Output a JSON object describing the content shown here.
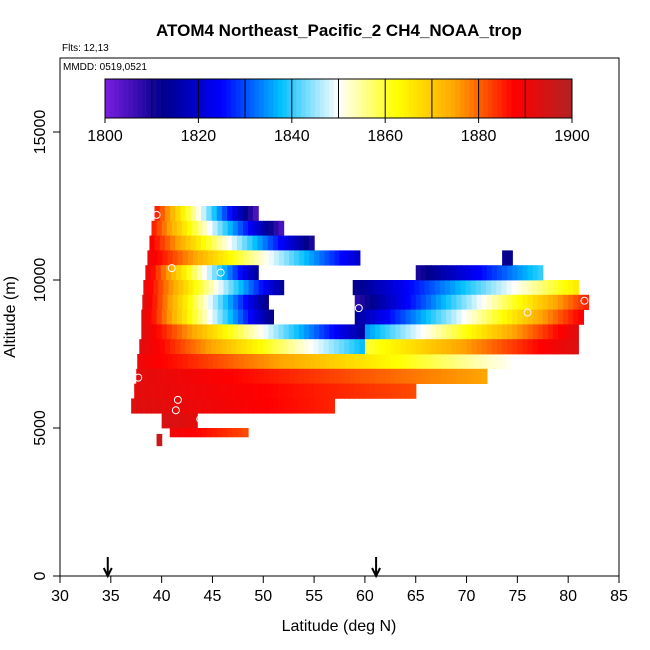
{
  "chart_data": {
    "type": "heatmap",
    "title": "ATOM4 Northeast_Pacific_2 CH4_NOAA_trop",
    "notes": [
      "Flts: 12,13",
      "MMDD: 0519,0521"
    ],
    "xlabel": "Latitude (deg N)",
    "ylabel": "Altitude (m)",
    "xlim": [
      30,
      85
    ],
    "ylim": [
      0,
      17500
    ],
    "xticks": [
      30,
      35,
      40,
      45,
      50,
      55,
      60,
      65,
      70,
      75,
      80,
      85
    ],
    "yticks": [
      0,
      5000,
      10000,
      15000
    ],
    "grid": false,
    "colorbar": {
      "placement": "top-inside",
      "min": 1800,
      "max": 1900,
      "ticks": [
        1800,
        1820,
        1840,
        1860,
        1880,
        1900
      ],
      "colors": [
        "#7a1fe0",
        "#00008b",
        "#0000ff",
        "#00bfff",
        "#ffffff",
        "#ffff00",
        "#ffa500",
        "#ff0000",
        "#b22222"
      ]
    },
    "arrows_x": [
      34.7,
      61.1
    ],
    "bands": [
      {
        "lat_from": 39.3,
        "lat_to": 49.5,
        "alt_from": 12000,
        "alt_to": 12500,
        "start_value": 1885,
        "end_value": 1805
      },
      {
        "lat_from": 39.0,
        "lat_to": 52.0,
        "alt_from": 11500,
        "alt_to": 12000,
        "start_value": 1885,
        "end_value": 1805
      },
      {
        "lat_from": 38.8,
        "lat_to": 55.0,
        "alt_from": 11000,
        "alt_to": 11500,
        "start_value": 1888,
        "end_value": 1810
      },
      {
        "lat_from": 38.6,
        "lat_to": 59.5,
        "alt_from": 10500,
        "alt_to": 11000,
        "start_value": 1890,
        "end_value": 1820
      },
      {
        "lat_from": 38.4,
        "lat_to": 49.5,
        "alt_from": 10000,
        "alt_to": 10500,
        "start_value": 1890,
        "end_value": 1815
      },
      {
        "lat_from": 38.2,
        "lat_to": 52.0,
        "alt_from": 9500,
        "alt_to": 10000,
        "start_value": 1890,
        "end_value": 1815
      },
      {
        "lat_from": 38.1,
        "lat_to": 50.5,
        "alt_from": 9000,
        "alt_to": 9500,
        "start_value": 1892,
        "end_value": 1812
      },
      {
        "lat_from": 38.0,
        "lat_to": 51.0,
        "alt_from": 8500,
        "alt_to": 9000,
        "start_value": 1892,
        "end_value": 1812
      },
      {
        "lat_from": 38.0,
        "lat_to": 60.0,
        "alt_from": 8000,
        "alt_to": 8500,
        "start_value": 1892,
        "end_value": 1815
      },
      {
        "lat_from": 37.8,
        "lat_to": 65.0,
        "alt_from": 7500,
        "alt_to": 8000,
        "start_value": 1892,
        "end_value": 1825
      },
      {
        "lat_from": 37.6,
        "lat_to": 75.0,
        "alt_from": 7000,
        "alt_to": 7500,
        "start_value": 1890,
        "end_value": 1850
      },
      {
        "lat_from": 37.5,
        "lat_to": 72.0,
        "alt_from": 6500,
        "alt_to": 7000,
        "start_value": 1892,
        "end_value": 1875
      },
      {
        "lat_from": 37.3,
        "lat_to": 65.0,
        "alt_from": 6000,
        "alt_to": 6500,
        "start_value": 1892,
        "end_value": 1882
      },
      {
        "lat_from": 37.0,
        "lat_to": 57.0,
        "alt_from": 5500,
        "alt_to": 6000,
        "start_value": 1893,
        "end_value": 1885
      },
      {
        "lat_from": 40.0,
        "lat_to": 43.5,
        "alt_from": 5000,
        "alt_to": 5500,
        "start_value": 1894,
        "end_value": 1892
      },
      {
        "lat_from": 40.8,
        "lat_to": 48.5,
        "alt_from": 4700,
        "alt_to": 5000,
        "start_value": 1890,
        "end_value": 1882
      },
      {
        "lat_from": 39.5,
        "lat_to": 40.0,
        "alt_from": 4400,
        "alt_to": 4800,
        "start_value": 1896,
        "end_value": 1896
      },
      {
        "lat_from": 58.8,
        "lat_to": 81.0,
        "alt_from": 9500,
        "alt_to": 10000,
        "start_value": 1812,
        "end_value": 1865
      },
      {
        "lat_from": 59.0,
        "lat_to": 82.0,
        "alt_from": 9000,
        "alt_to": 9500,
        "start_value": 1808,
        "end_value": 1885
      },
      {
        "lat_from": 59.0,
        "lat_to": 81.5,
        "alt_from": 8500,
        "alt_to": 9000,
        "start_value": 1815,
        "end_value": 1888
      },
      {
        "lat_from": 60.0,
        "lat_to": 81.0,
        "alt_from": 8000,
        "alt_to": 8500,
        "start_value": 1835,
        "end_value": 1892
      },
      {
        "lat_from": 60.0,
        "lat_to": 81.0,
        "alt_from": 7500,
        "alt_to": 8000,
        "start_value": 1860,
        "end_value": 1893
      },
      {
        "lat_from": 65.0,
        "lat_to": 77.5,
        "alt_from": 10000,
        "alt_to": 10500,
        "start_value": 1810,
        "end_value": 1840
      },
      {
        "lat_from": 73.5,
        "lat_to": 74.5,
        "alt_from": 10500,
        "alt_to": 11000,
        "start_value": 1812,
        "end_value": 1812
      }
    ],
    "points": [
      {
        "lat": 39.5,
        "alt": 12200
      },
      {
        "lat": 41.0,
        "alt": 10400
      },
      {
        "lat": 45.8,
        "alt": 10250
      },
      {
        "lat": 59.4,
        "alt": 9050
      },
      {
        "lat": 76.0,
        "alt": 8900
      },
      {
        "lat": 81.6,
        "alt": 9300
      },
      {
        "lat": 37.7,
        "alt": 6700
      },
      {
        "lat": 41.6,
        "alt": 5950
      },
      {
        "lat": 41.4,
        "alt": 5600
      },
      {
        "lat": 43.8,
        "alt": 5300
      }
    ]
  }
}
